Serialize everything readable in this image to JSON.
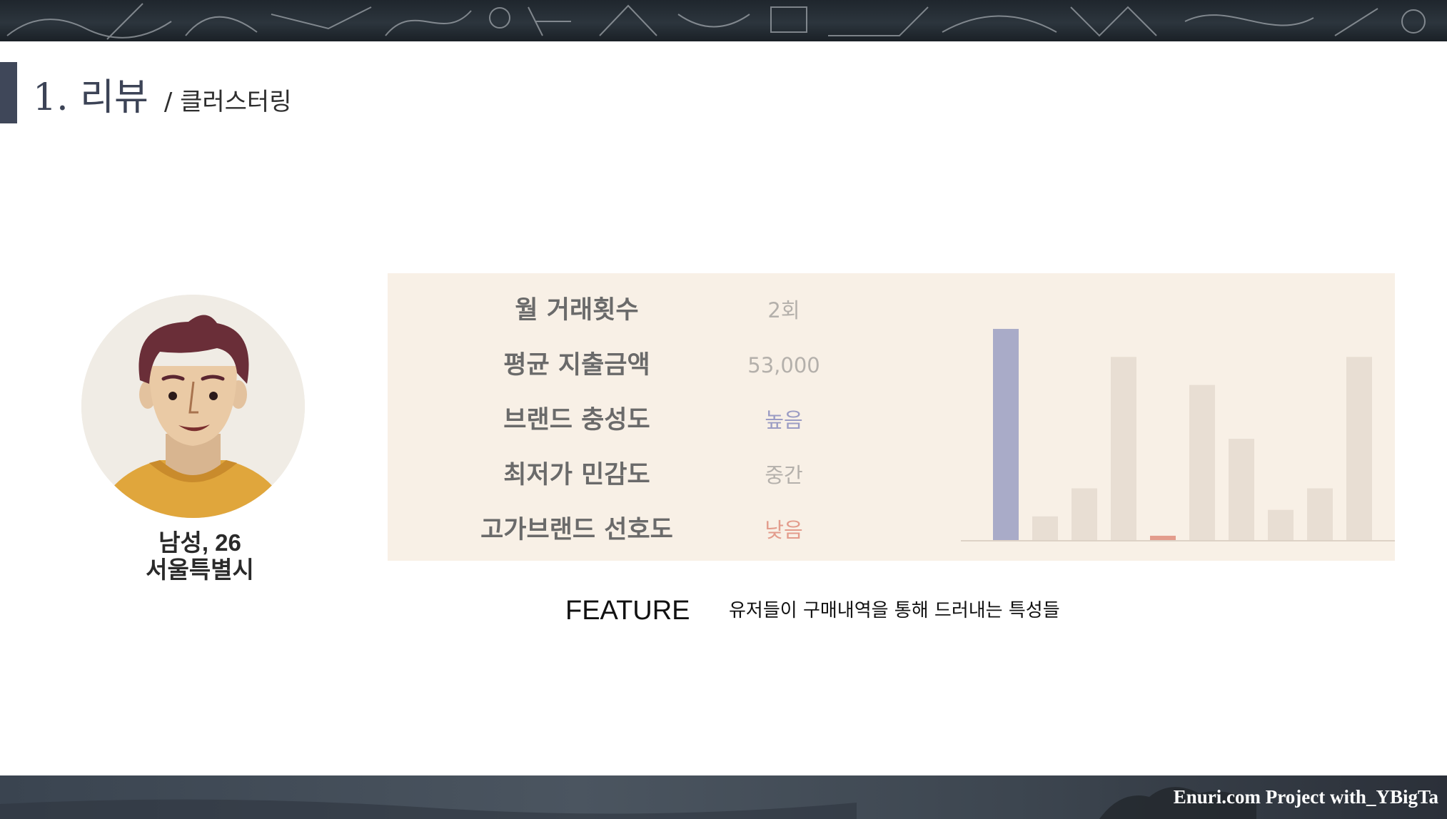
{
  "slide": {
    "title": "1. 리뷰",
    "subtitle": "/ 클러스터링"
  },
  "person": {
    "line1": "남성, 26",
    "line2": "서울특별시"
  },
  "features": [
    {
      "label": "월 거래횟수",
      "value": "2회",
      "color": "#b4b0ab"
    },
    {
      "label": "평균 지출금액",
      "value": "53,000",
      "color": "#b4b0ab"
    },
    {
      "label": "브랜드 충성도",
      "value": "높음",
      "color": "#9b9cc4"
    },
    {
      "label": "최저가 민감도",
      "value": "중간",
      "color": "#b4b0ab"
    },
    {
      "label": "고가브랜드 선호도",
      "value": "낮음",
      "color": "#e39c8c"
    }
  ],
  "chart_data": {
    "type": "bar",
    "values": [
      0.98,
      0.11,
      0.24,
      0.85,
      0.02,
      0.72,
      0.47,
      0.14,
      0.24,
      0.85
    ],
    "ylim": [
      0,
      1
    ],
    "highlight": {
      "0": "#a9abc8",
      "4": "#e39c8c"
    },
    "default_color": "#e8ded3",
    "axis": false,
    "grid": false
  },
  "legend": {
    "title": "FEATURE",
    "description": "유저들이 구매내역을 통해 드러내는 특성들"
  },
  "footer": {
    "credit": "Enuri.com Project with_YBigTa"
  },
  "colors": {
    "accent": "#3f4759",
    "panel_bg": "#f8f0e6"
  }
}
